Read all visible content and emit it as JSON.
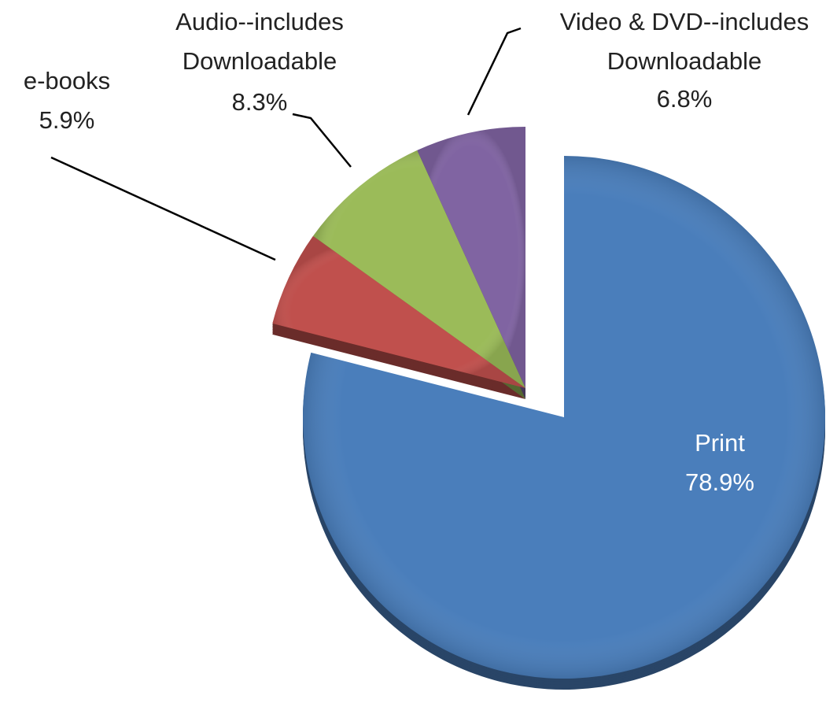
{
  "chart_data": {
    "type": "pie",
    "categories": [
      "Print",
      "e-books",
      "Audio--includes\nDownloadable",
      "Video & DVD--includes\nDownloadable"
    ],
    "values": [
      78.9,
      5.9,
      8.3,
      6.8
    ],
    "value_labels": [
      "78.9%",
      "5.9%",
      "8.3%",
      "6.8%"
    ],
    "colors": [
      "#4a7ebb",
      "#c0504d",
      "#9bbb59",
      "#8064a2"
    ]
  }
}
